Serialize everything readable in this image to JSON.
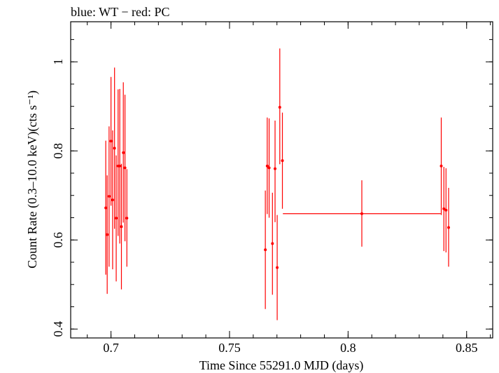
{
  "header": {
    "title": "blue: WT − red: PC"
  },
  "colors": {
    "pc": "#ff0000",
    "axis": "#000000"
  },
  "chart_data": {
    "type": "scatter",
    "title": "blue: WT − red: PC",
    "xlabel": "Time Since 55291.0 MJD (days)",
    "ylabel": "Count Rate (0.3–10.0 keV)(cts s⁻¹)",
    "xlim": [
      0.683,
      0.861
    ],
    "ylim": [
      0.38,
      1.09
    ],
    "xticks": [
      {
        "value": 0.7,
        "label": "0.7"
      },
      {
        "value": 0.75,
        "label": "0.75"
      },
      {
        "value": 0.8,
        "label": "0.8"
      },
      {
        "value": 0.85,
        "label": "0.85"
      }
    ],
    "yticks": [
      {
        "value": 0.4,
        "label": "0.4"
      },
      {
        "value": 0.6,
        "label": "0.6"
      },
      {
        "value": 0.8,
        "label": "0.8"
      },
      {
        "value": 1.0,
        "label": "1"
      }
    ],
    "x_minor_step": 0.01,
    "y_minor_step": 0.05,
    "series": [
      {
        "name": "PC",
        "color": "#ff0000",
        "points": [
          {
            "x": 0.6978,
            "y": 0.672,
            "ylo": 0.522,
            "yhi": 0.823,
            "xerr": 0.0004
          },
          {
            "x": 0.6984,
            "y": 0.612,
            "ylo": 0.479,
            "yhi": 0.745,
            "xerr": 0.0004
          },
          {
            "x": 0.6992,
            "y": 0.698,
            "ylo": 0.54,
            "yhi": 0.855,
            "xerr": 0.0004
          },
          {
            "x": 0.7,
            "y": 0.822,
            "ylo": 0.677,
            "yhi": 0.966,
            "xerr": 0.0004
          },
          {
            "x": 0.7007,
            "y": 0.69,
            "ylo": 0.534,
            "yhi": 0.846,
            "xerr": 0.0004
          },
          {
            "x": 0.7015,
            "y": 0.806,
            "ylo": 0.625,
            "yhi": 0.987,
            "xerr": 0.0004
          },
          {
            "x": 0.7022,
            "y": 0.649,
            "ylo": 0.507,
            "yhi": 0.79,
            "xerr": 0.0004
          },
          {
            "x": 0.703,
            "y": 0.766,
            "ylo": 0.609,
            "yhi": 0.938,
            "xerr": 0.0004
          },
          {
            "x": 0.7037,
            "y": 0.766,
            "ylo": 0.592,
            "yhi": 0.939,
            "xerr": 0.0004
          },
          {
            "x": 0.7044,
            "y": 0.63,
            "ylo": 0.489,
            "yhi": 0.771,
            "xerr": 0.0004
          },
          {
            "x": 0.7052,
            "y": 0.796,
            "ylo": 0.639,
            "yhi": 0.954,
            "xerr": 0.0004
          },
          {
            "x": 0.7059,
            "y": 0.762,
            "ylo": 0.597,
            "yhi": 0.926,
            "xerr": 0.0004
          },
          {
            "x": 0.7067,
            "y": 0.649,
            "ylo": 0.54,
            "yhi": 0.759,
            "xerr": 0.0004
          },
          {
            "x": 0.7651,
            "y": 0.578,
            "ylo": 0.445,
            "yhi": 0.711,
            "xerr": 0.0004
          },
          {
            "x": 0.7659,
            "y": 0.766,
            "ylo": 0.658,
            "yhi": 0.875,
            "xerr": 0.0004
          },
          {
            "x": 0.7667,
            "y": 0.762,
            "ylo": 0.65,
            "yhi": 0.873,
            "xerr": 0.0004
          },
          {
            "x": 0.7681,
            "y": 0.592,
            "ylo": 0.477,
            "yhi": 0.706,
            "xerr": 0.0004
          },
          {
            "x": 0.7692,
            "y": 0.76,
            "ylo": 0.64,
            "yhi": 0.868,
            "xerr": 0.0004
          },
          {
            "x": 0.7701,
            "y": 0.538,
            "ylo": 0.42,
            "yhi": 0.656,
            "xerr": 0.0004
          },
          {
            "x": 0.7712,
            "y": 0.898,
            "ylo": 0.77,
            "yhi": 1.03,
            "xerr": 0.0004
          },
          {
            "x": 0.7723,
            "y": 0.778,
            "ylo": 0.67,
            "yhi": 0.886,
            "xerr": 0.0004
          },
          {
            "x": 0.8058,
            "y": 0.659,
            "ylo": 0.585,
            "yhi": 0.734,
            "xerr": 0.0333
          },
          {
            "x": 0.8393,
            "y": 0.766,
            "ylo": 0.656,
            "yhi": 0.875,
            "xerr": 0.0004
          },
          {
            "x": 0.8404,
            "y": 0.67,
            "ylo": 0.575,
            "yhi": 0.764,
            "xerr": 0.0004
          },
          {
            "x": 0.8413,
            "y": 0.667,
            "ylo": 0.572,
            "yhi": 0.761,
            "xerr": 0.0004
          },
          {
            "x": 0.8424,
            "y": 0.628,
            "ylo": 0.54,
            "yhi": 0.717,
            "xerr": 0.0004
          }
        ]
      }
    ]
  }
}
